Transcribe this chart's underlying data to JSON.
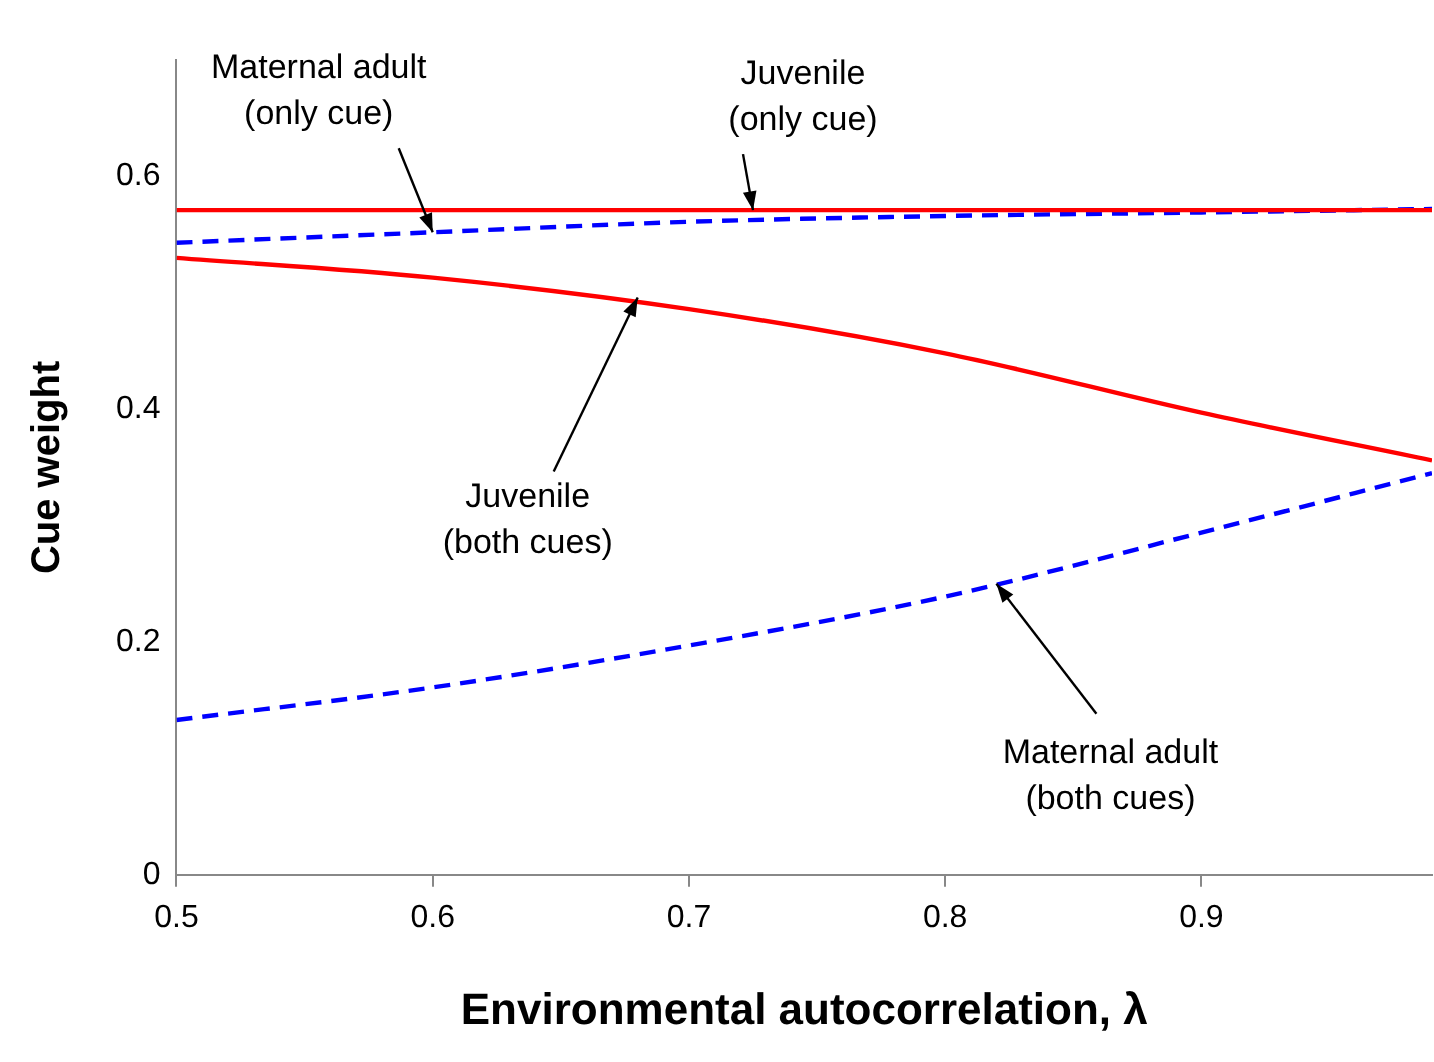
{
  "chart_data": {
    "type": "line",
    "xlabel": "Environmental autocorrelation, λ",
    "ylabel": "Cue weight",
    "xlim": [
      0.5,
      0.99
    ],
    "ylim": [
      0,
      0.7
    ],
    "xticks": [
      0.5,
      0.6,
      0.7,
      0.8,
      0.9
    ],
    "yticks": [
      0,
      0.2,
      0.4,
      0.6
    ],
    "x": [
      0.5,
      0.6,
      0.7,
      0.8,
      0.9,
      0.99
    ],
    "series": [
      {
        "color": "#ff0000",
        "line_style": "solid",
        "values": [
          0.571,
          0.571,
          0.571,
          0.571,
          0.571,
          0.571
        ]
      },
      {
        "color": "#0000ff",
        "line_style": "dashed",
        "values": [
          0.543,
          0.552,
          0.561,
          0.566,
          0.569,
          0.572
        ]
      },
      {
        "color": "#ff0000",
        "line_style": "solid",
        "values": [
          0.53,
          0.513,
          0.486,
          0.448,
          0.397,
          0.356
        ]
      },
      {
        "color": "#0000ff",
        "line_style": "dashed",
        "values": [
          0.133,
          0.161,
          0.197,
          0.239,
          0.294,
          0.345
        ]
      }
    ],
    "annotations": [
      {
        "text": "Maternal adult\n(only cue)",
        "x": 0.6,
        "y": 0.552
      },
      {
        "text": "Juvenile\n(only cue)",
        "x": 0.725,
        "y": 0.571
      },
      {
        "text": "Juvenile\n(both cues)",
        "x": 0.68,
        "y": 0.496
      },
      {
        "text": "Maternal adult\n(both cues)",
        "x": 0.82,
        "y": 0.25
      }
    ],
    "grid": false,
    "legend": false,
    "marker": "none"
  }
}
